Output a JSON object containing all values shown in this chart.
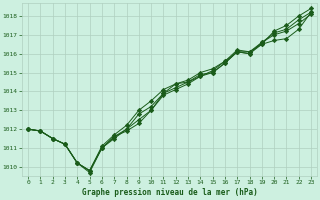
{
  "title": "Graphe pression niveau de la mer (hPa)",
  "background_color": "#cdf0e0",
  "grid_color": "#b0d0c0",
  "line_color": "#1a5c1a",
  "text_color": "#1a5c1a",
  "xlim": [
    -0.5,
    23.5
  ],
  "ylim": [
    1009.5,
    1018.7
  ],
  "yticks": [
    1010,
    1011,
    1012,
    1013,
    1014,
    1015,
    1016,
    1017,
    1018
  ],
  "xticks": [
    0,
    1,
    2,
    3,
    4,
    5,
    6,
    7,
    8,
    9,
    10,
    11,
    12,
    13,
    14,
    15,
    16,
    17,
    18,
    19,
    20,
    21,
    22,
    23
  ],
  "figsize": [
    3.2,
    2.0
  ],
  "dpi": 100,
  "line1": [
    1012.0,
    1011.9,
    1011.5,
    1011.2,
    1010.2,
    1009.8,
    1011.0,
    1011.6,
    1011.9,
    1012.3,
    1013.0,
    1013.9,
    1014.4,
    1014.5,
    1014.9,
    1015.0,
    1015.5,
    1016.1,
    1016.1,
    1016.5,
    1017.2,
    1017.5,
    1018.0,
    1018.4
  ],
  "line2": [
    1012.0,
    1011.9,
    1011.5,
    1011.2,
    1010.2,
    1009.8,
    1011.0,
    1011.6,
    1012.0,
    1012.8,
    1013.2,
    1013.9,
    1014.2,
    1014.5,
    1014.8,
    1015.0,
    1015.5,
    1016.1,
    1016.0,
    1016.6,
    1017.0,
    1017.2,
    1017.6,
    1018.1
  ],
  "line3": [
    1012.0,
    1011.9,
    1011.5,
    1011.2,
    1010.2,
    1009.8,
    1011.1,
    1011.7,
    1012.2,
    1013.0,
    1013.5,
    1014.1,
    1014.4,
    1014.6,
    1015.0,
    1015.2,
    1015.6,
    1016.2,
    1016.1,
    1016.6,
    1017.1,
    1017.3,
    1017.8,
    1018.2
  ],
  "line4": [
    1012.0,
    1011.9,
    1011.5,
    1011.2,
    1010.2,
    1009.7,
    1011.0,
    1011.5,
    1012.0,
    1012.5,
    1013.0,
    1013.8,
    1014.1,
    1014.4,
    1014.8,
    1015.1,
    1015.6,
    1016.1,
    1016.0,
    1016.5,
    1016.7,
    1016.8,
    1017.3,
    1018.2
  ]
}
